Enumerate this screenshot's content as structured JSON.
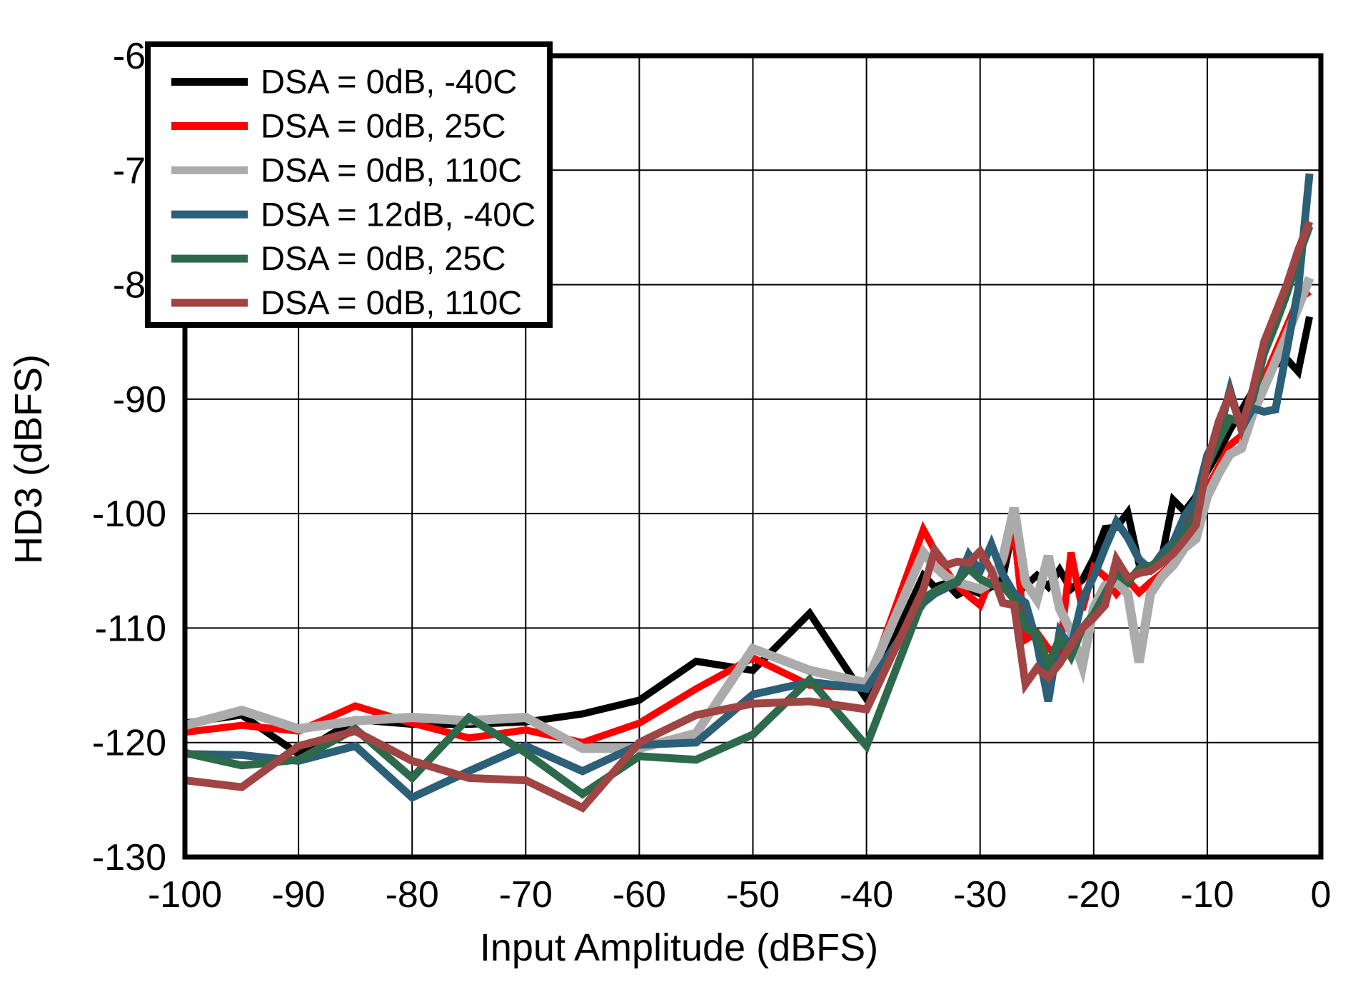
{
  "chart_data": {
    "type": "line",
    "title": "",
    "xlabel": "Input Amplitude (dBFS)",
    "ylabel": "HD3 (dBFS)",
    "xlim": [
      -100,
      0
    ],
    "ylim": [
      -130,
      -60
    ],
    "xticks": [
      -100,
      -90,
      -80,
      -70,
      -60,
      -50,
      -40,
      -30,
      -20,
      -10,
      0
    ],
    "yticks": [
      -60,
      -70,
      -80,
      -90,
      -100,
      -110,
      -120,
      -130
    ],
    "grid": true,
    "legend_position": "top-left",
    "background_color": "#FFFFFF",
    "axis_color": "#000000",
    "gridline_color": "#000000",
    "x": [
      -100,
      -95,
      -90,
      -85,
      -80,
      -75,
      -70,
      -65,
      -60,
      -55,
      -50,
      -45,
      -40,
      -35,
      -34,
      -33,
      -32,
      -31,
      -30,
      -29,
      -28,
      -27,
      -26,
      -25,
      -24,
      -23,
      -22,
      -21,
      -20,
      -19,
      -18,
      -17,
      -16,
      -15,
      -14,
      -13,
      -12,
      -11,
      -10,
      -9,
      -8,
      -7,
      -6,
      -5,
      -4,
      -3,
      -2,
      -1
    ],
    "series": [
      {
        "name": "DSA = 0dB, -40C",
        "color": "#000000",
        "values": [
          -118.3,
          -117.6,
          -121.0,
          -118.0,
          -118.4,
          -118.4,
          -118.2,
          -117.5,
          -116.3,
          -112.9,
          -113.7,
          -108.7,
          -116.2,
          -105.4,
          -106.4,
          -106.1,
          -107.1,
          -106.6,
          -107.0,
          -106.4,
          -105.6,
          -100.8,
          -106.3,
          -105.4,
          -106.4,
          -104.9,
          -106.6,
          -105.8,
          -103.9,
          -101.3,
          -101.2,
          -99.9,
          -104.4,
          -104.6,
          -103.8,
          -98.8,
          -99.8,
          -98.5,
          -96.3,
          -94.6,
          -92.7,
          -91.0,
          -89.3,
          -87.9,
          -87.0,
          -86.5,
          -87.6,
          -82.8
        ]
      },
      {
        "name": "DSA = 0dB, 25C",
        "color": "#FF0000",
        "values": [
          -119.1,
          -118.5,
          -119.0,
          -116.8,
          -118.3,
          -119.6,
          -118.9,
          -120.0,
          -118.3,
          -115.3,
          -112.6,
          -115.0,
          -115.2,
          -101.4,
          -103.2,
          -105.0,
          -106.3,
          -107.2,
          -108.0,
          -105.5,
          -104.3,
          -101.4,
          -111.0,
          -110.4,
          -111.8,
          -112.2,
          -103.4,
          -108.4,
          -104.7,
          -105.5,
          -107.0,
          -105.8,
          -106.9,
          -106.0,
          -105.2,
          -104.3,
          -101.5,
          -99.5,
          -97.8,
          -95.9,
          -94.0,
          -93.2,
          -90.5,
          -88.2,
          -85.9,
          -83.6,
          -81.3,
          -80.6
        ]
      },
      {
        "name": "DSA = 0dB, 110C",
        "color": "#ABABAB",
        "values": [
          -118.5,
          -117.2,
          -118.8,
          -118.1,
          -117.8,
          -118.1,
          -117.8,
          -120.5,
          -120.5,
          -119.2,
          -111.8,
          -113.7,
          -114.8,
          -103.4,
          -104.6,
          -105.5,
          -106.0,
          -106.3,
          -106.6,
          -106.0,
          -103.9,
          -99.5,
          -106.0,
          -107.5,
          -103.7,
          -108.3,
          -110.3,
          -113.3,
          -108.2,
          -106.3,
          -106.0,
          -107.0,
          -113.0,
          -107.0,
          -105.5,
          -104.5,
          -103.0,
          -102.2,
          -98.5,
          -96.5,
          -94.8,
          -94.3,
          -91.3,
          -89.0,
          -86.7,
          -84.4,
          -82.0,
          -79.4
        ]
      },
      {
        "name": "DSA = 12dB, -40C",
        "color": "#2C5F78",
        "values": [
          -121.0,
          -121.1,
          -121.6,
          -120.3,
          -124.8,
          -122.5,
          -120.3,
          -122.5,
          -120.2,
          -120.0,
          -115.8,
          -114.7,
          -115.3,
          -107.8,
          -107.0,
          -106.5,
          -106.0,
          -103.6,
          -105.0,
          -102.7,
          -105.3,
          -107.0,
          -107.8,
          -111.3,
          -116.4,
          -110.3,
          -111.7,
          -107.5,
          -105.5,
          -103.0,
          -100.7,
          -102.1,
          -104.0,
          -104.9,
          -103.5,
          -102.5,
          -100.2,
          -98.8,
          -94.9,
          -93.0,
          -89.2,
          -92.6,
          -90.8,
          -91.1,
          -90.9,
          -85.7,
          -80.4,
          -70.3
        ]
      },
      {
        "name": "DSA = 0dB, 25C",
        "color": "#2D6A4C",
        "values": [
          -120.9,
          -122.0,
          -121.5,
          -118.8,
          -123.1,
          -117.8,
          -120.9,
          -124.5,
          -121.2,
          -121.5,
          -119.3,
          -114.5,
          -120.3,
          -107.4,
          -106.8,
          -106.3,
          -105.9,
          -104.8,
          -105.7,
          -106.2,
          -106.3,
          -107.5,
          -110.0,
          -110.5,
          -113.2,
          -110.9,
          -112.5,
          -110.0,
          -108.8,
          -107.0,
          -105.2,
          -106.0,
          -104.8,
          -104.6,
          -104.0,
          -103.0,
          -101.8,
          -100.0,
          -95.8,
          -93.6,
          -91.7,
          -92.0,
          -90.0,
          -86.0,
          -83.5,
          -80.8,
          -77.6,
          -74.9
        ]
      },
      {
        "name": "DSA = 0dB, 110C",
        "color": "#A04444",
        "values": [
          -123.3,
          -123.9,
          -120.3,
          -119.0,
          -121.6,
          -123.1,
          -123.3,
          -125.7,
          -120.0,
          -117.6,
          -116.6,
          -116.4,
          -117.1,
          -106.6,
          -103.2,
          -104.5,
          -104.2,
          -104.3,
          -103.3,
          -105.0,
          -107.8,
          -108.0,
          -114.9,
          -113.5,
          -114.3,
          -113.1,
          -111.5,
          -110.0,
          -109.1,
          -108.0,
          -104.0,
          -105.6,
          -105.2,
          -105.0,
          -104.3,
          -103.5,
          -102.3,
          -101.0,
          -95.5,
          -92.0,
          -89.5,
          -92.5,
          -89.2,
          -85.0,
          -82.5,
          -80.0,
          -77.0,
          -74.5
        ]
      }
    ]
  }
}
